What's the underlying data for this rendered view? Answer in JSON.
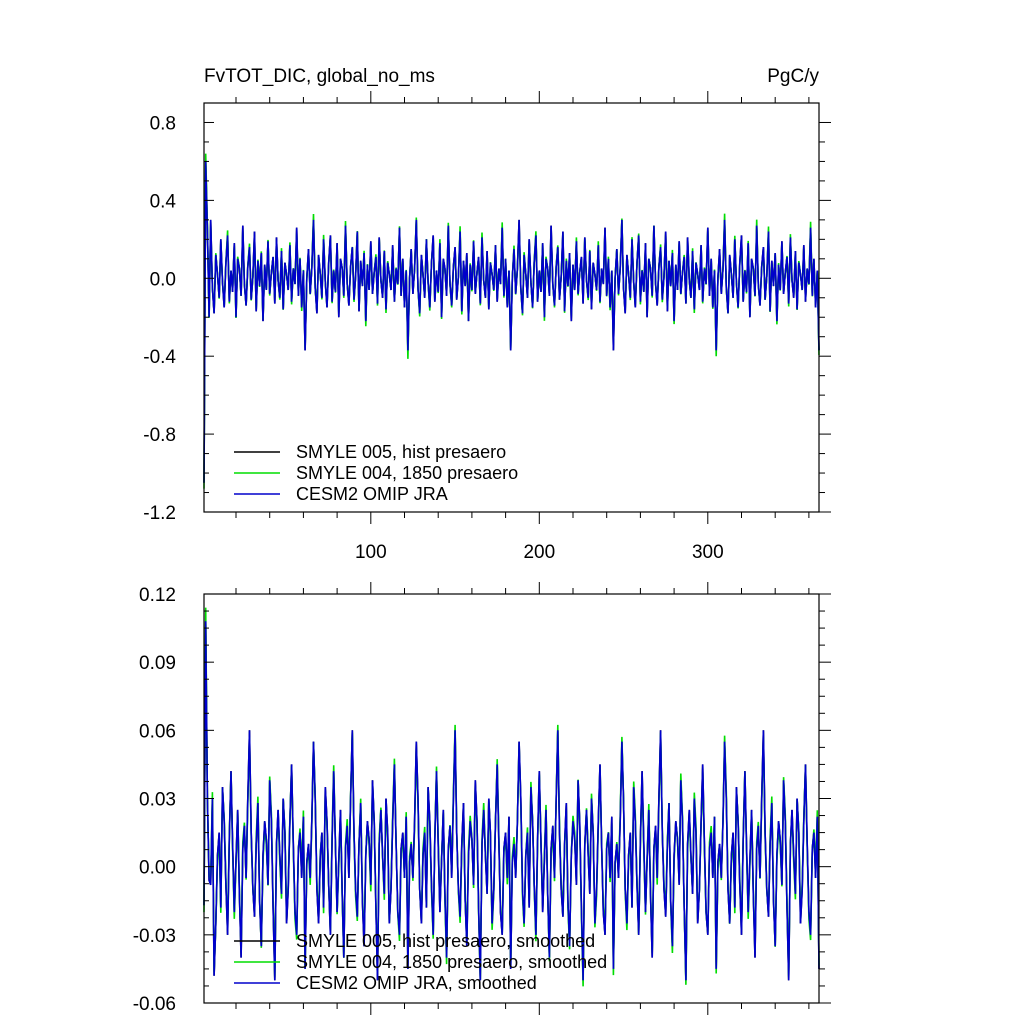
{
  "panels": [
    {
      "title_left": "FvTOT_DIC, global_no_ms",
      "title_right": "PgC/y",
      "yticks": [
        {
          "v": -1.2,
          "label": "-1.2"
        },
        {
          "v": -0.8,
          "label": "-0.8"
        },
        {
          "v": -0.4,
          "label": "-0.4"
        },
        {
          "v": 0.0,
          "label": "0.0"
        },
        {
          "v": 0.4,
          "label": "0.4"
        },
        {
          "v": 0.8,
          "label": "0.8"
        }
      ],
      "xticks": [
        {
          "v": 100,
          "label": "100"
        },
        {
          "v": 200,
          "label": "200"
        },
        {
          "v": 300,
          "label": "300"
        }
      ],
      "legend": [
        "SMYLE 005, hist presaero",
        "SMYLE 004, 1850 presaero",
        "CESM2 OMIP JRA"
      ]
    },
    {
      "title_left": "",
      "title_right": "",
      "yticks": [
        {
          "v": -0.06,
          "label": "-0.06"
        },
        {
          "v": -0.03,
          "label": "-0.03"
        },
        {
          "v": 0.0,
          "label": "0.00"
        },
        {
          "v": 0.03,
          "label": "0.03"
        },
        {
          "v": 0.06,
          "label": "0.06"
        },
        {
          "v": 0.09,
          "label": "0.09"
        },
        {
          "v": 0.12,
          "label": "0.12"
        }
      ],
      "xticks": [
        {
          "v": 100,
          "label": ""
        },
        {
          "v": 200,
          "label": ""
        },
        {
          "v": 300,
          "label": ""
        }
      ],
      "legend": [
        "SMYLE 005, hist presaero, smoothed",
        "SMYLE 004, 1850 presaero, smoothed",
        "CESM2 OMIP JRA, smoothed"
      ]
    }
  ],
  "chart_data": [
    {
      "type": "line",
      "title": "FvTOT_DIC, global_no_ms",
      "units": "PgC/y",
      "xlim": [
        1,
        366
      ],
      "ylim": [
        -1.2,
        0.9
      ],
      "grid": false,
      "legend_position": "bottom-left",
      "x_start": 1,
      "x_step": 1,
      "series": [
        {
          "name": "SMYLE 005, hist presaero",
          "color": "#000000",
          "values": []
        },
        {
          "name": "SMYLE 004, 1850 presaero",
          "color": "#00dd00",
          "values": []
        },
        {
          "name": "CESM2 OMIP JRA",
          "color": "#0000cc",
          "values": []
        }
      ]
    },
    {
      "type": "line",
      "xlim": [
        1,
        366
      ],
      "ylim": [
        -0.06,
        0.12
      ],
      "grid": false,
      "legend_position": "bottom-left",
      "x_start": 1,
      "x_step": 1,
      "series": [
        {
          "name": "SMYLE 005, hist presaero, smoothed",
          "color": "#000000",
          "values": []
        },
        {
          "name": "SMYLE 004, 1850 presaero, smoothed",
          "color": "#00dd00",
          "values": []
        },
        {
          "name": "CESM2 OMIP JRA, smoothed",
          "color": "#0000cc",
          "values": []
        }
      ]
    }
  ]
}
